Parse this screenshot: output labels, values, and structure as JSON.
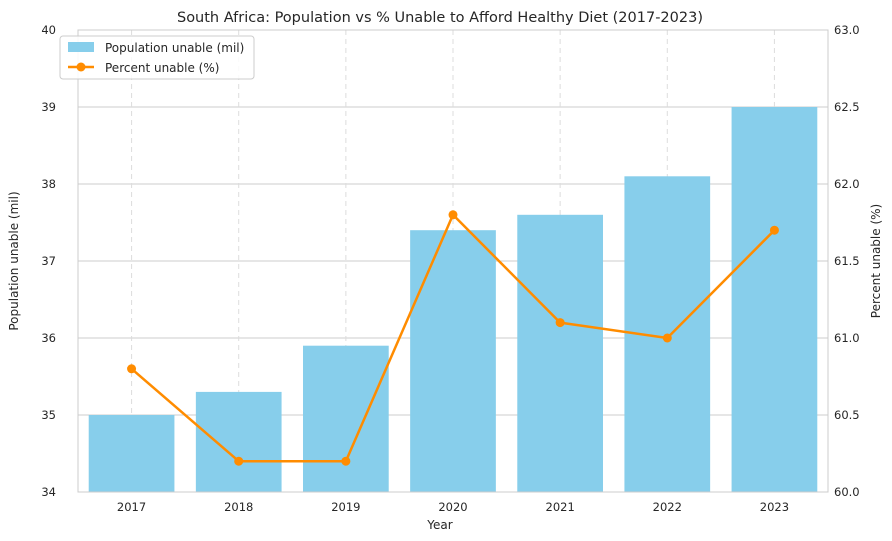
{
  "chart_data": {
    "type": "bar",
    "title": "South Africa: Population vs % Unable to Afford Healthy Diet (2017-2023)",
    "xlabel": "Year",
    "ylabel": "Population unable (mil)",
    "y2label": "Percent unable (%)",
    "categories": [
      "2017",
      "2018",
      "2019",
      "2020",
      "2021",
      "2022",
      "2023"
    ],
    "ylim": [
      34,
      40
    ],
    "y2lim": [
      60.0,
      63.0
    ],
    "yticks": [
      "34",
      "35",
      "36",
      "37",
      "38",
      "39",
      "40"
    ],
    "y2ticks": [
      "60.0",
      "60.5",
      "61.0",
      "61.5",
      "62.0",
      "62.5",
      "63.0"
    ],
    "grid": true,
    "legend_position": "top-left",
    "series": [
      {
        "name": "Population unable (mil)",
        "type": "bar",
        "axis": "left",
        "color": "#87CEEB",
        "values": [
          35.0,
          35.3,
          35.9,
          37.4,
          37.6,
          38.1,
          39.0
        ]
      },
      {
        "name": "Percent unable (%)",
        "type": "line",
        "axis": "right",
        "color": "#FF8C00",
        "values": [
          60.8,
          60.2,
          60.2,
          61.8,
          61.1,
          61.0,
          61.7
        ]
      }
    ]
  }
}
